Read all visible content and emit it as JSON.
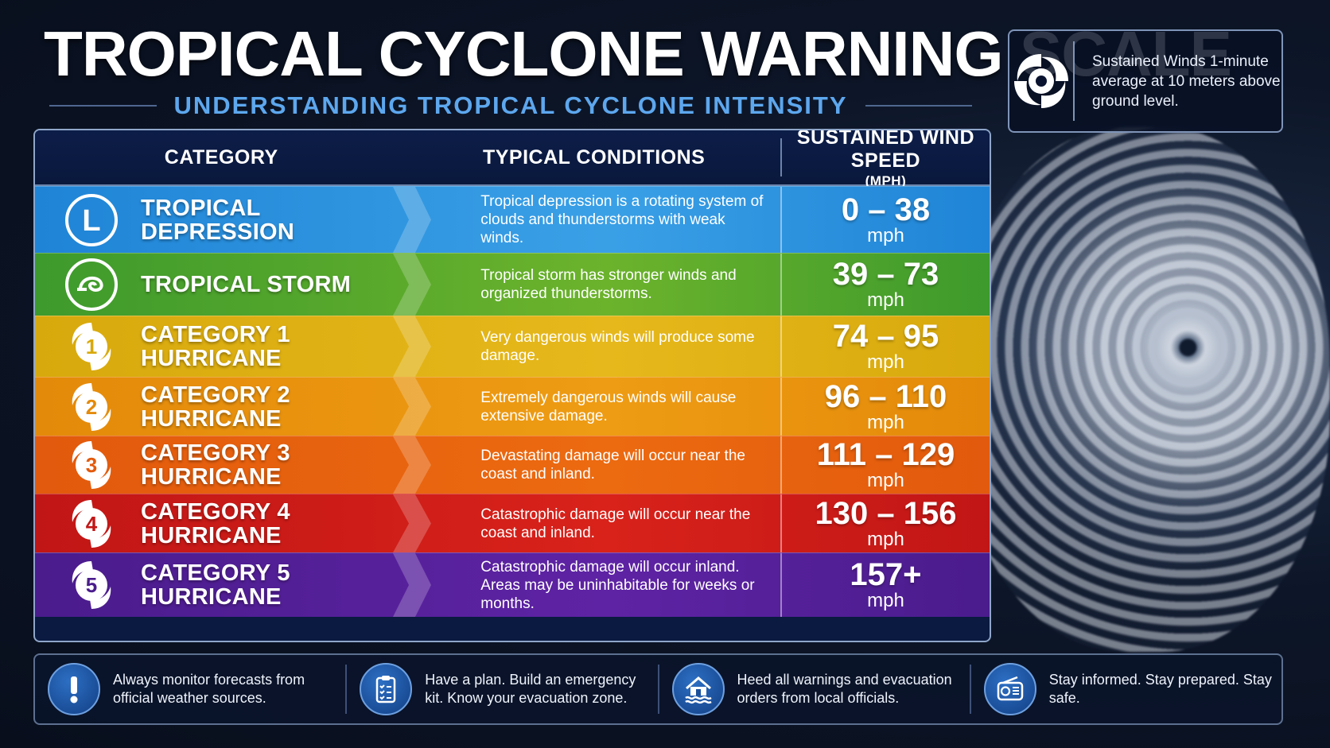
{
  "header": {
    "title": "TROPICAL CYCLONE WARNING SCALE",
    "subtitle": "UNDERSTANDING TROPICAL CYCLONE INTENSITY"
  },
  "info_box": {
    "icon": "cyclone-icon",
    "text": "Sustained Winds 1-minute average at 10 meters above ground level."
  },
  "table": {
    "headers": {
      "category": "CATEGORY",
      "conditions": "TYPICAL CONDITIONS",
      "wind": "SUSTAINED WIND SPEED",
      "wind_unit": "(MPH)"
    },
    "rows": [
      {
        "icon_text": "L",
        "icon": "low-pressure-icon",
        "label": "TROPICAL DEPRESSION",
        "conditions": "Tropical depression is a rotating system of clouds and thunderstorms with weak winds.",
        "range": "0 – 38",
        "unit": "mph",
        "color_from": "#1f84d6",
        "color_to": "#3aa0e6"
      },
      {
        "icon_text": "",
        "icon": "tropical-storm-icon",
        "label": "TROPICAL STORM",
        "conditions": "Tropical storm has stronger winds and organized thunderstorms.",
        "range": "39 – 73",
        "unit": "mph",
        "color_from": "#3d9a2c",
        "color_to": "#6cb32c"
      },
      {
        "icon_text": "1",
        "icon": "hurricane-1-icon",
        "label": "CATEGORY 1\nHURRICANE",
        "conditions": "Very dangerous winds will produce some damage.",
        "range": "74 – 95",
        "unit": "mph",
        "color_from": "#d8a90c",
        "color_to": "#e6b81b"
      },
      {
        "icon_text": "2",
        "icon": "hurricane-2-icon",
        "label": "CATEGORY 2\nHURRICANE",
        "conditions": "Extremely dangerous winds will cause extensive damage.",
        "range": "96 – 110",
        "unit": "mph",
        "color_from": "#e48a0a",
        "color_to": "#ee9c14"
      },
      {
        "icon_text": "3",
        "icon": "hurricane-3-icon",
        "label": "CATEGORY 3\nHURRICANE",
        "conditions": "Devastating damage will occur near the coast and inland.",
        "range": "111 – 129",
        "unit": "mph",
        "color_from": "#e25a0d",
        "color_to": "#ec6a10"
      },
      {
        "icon_text": "4",
        "icon": "hurricane-4-icon",
        "label": "CATEGORY 4\nHURRICANE",
        "conditions": "Catastrophic damage will occur near the coast and inland.",
        "range": "130 – 156",
        "unit": "mph",
        "color_from": "#c11616",
        "color_to": "#d8221a"
      },
      {
        "icon_text": "5",
        "icon": "hurricane-5-icon",
        "label": "CATEGORY 5\nHURRICANE",
        "conditions": "Catastrophic damage will occur inland. Areas may be uninhabitable for weeks or months.",
        "range": "157+",
        "unit": "mph",
        "color_from": "#4a1c8c",
        "color_to": "#5e23a4"
      }
    ]
  },
  "footer": {
    "tips": [
      {
        "icon": "exclamation-icon",
        "text": "Always monitor forecasts from official weather sources."
      },
      {
        "icon": "clipboard-checklist-icon",
        "text": "Have a plan. Build an emergency kit. Know your evacuation zone."
      },
      {
        "icon": "flooded-house-icon",
        "text": "Heed all warnings and evacuation orders from local officials."
      },
      {
        "icon": "radio-icon",
        "text": "Stay informed. Stay prepared. Stay safe."
      }
    ]
  }
}
